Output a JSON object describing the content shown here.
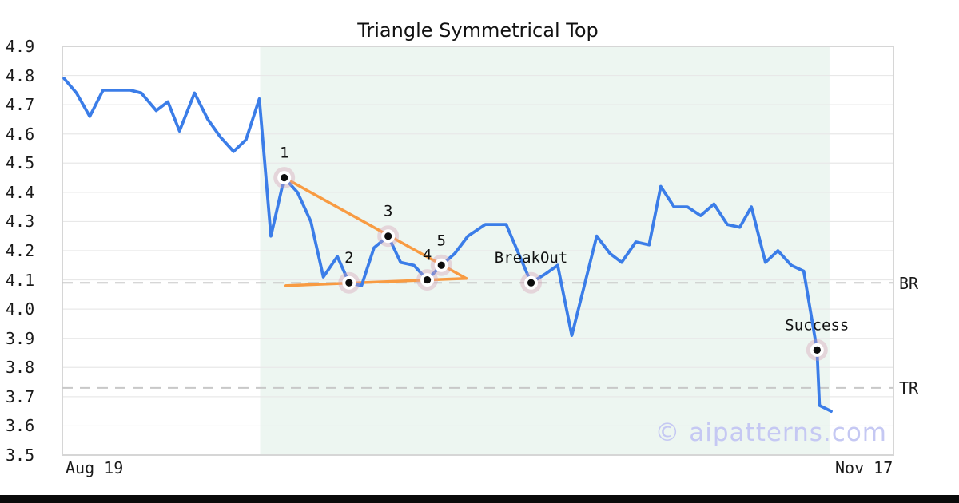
{
  "title": "Triangle Symmetrical Top",
  "watermark": "© aipatterns.com",
  "colors": {
    "price_line": "#3b7de8",
    "trendline": "#f89b42",
    "pattern_zone": "#edf6f1",
    "grid": "#e8e8e8",
    "plot_border": "#d6d6d6",
    "level_dash": "#c8c8c8",
    "marker_halo": "rgba(213,160,181,0.38)",
    "marker_ring": "#ffffff",
    "marker_dot": "#0d0d0d",
    "annotation_text": "#111111",
    "watermark_text": "#c5c8f3",
    "footer_bar": "#0a0a0a"
  },
  "chart_data": {
    "type": "line",
    "title": "Triangle Symmetrical Top",
    "xlabel": "",
    "ylabel": "",
    "ylim": [
      3.5,
      4.9
    ],
    "grid": "horizontal",
    "legend": "none",
    "y_ticks": [
      4.9,
      4.8,
      4.7,
      4.6,
      4.5,
      4.4,
      4.3,
      4.2,
      4.1,
      4.0,
      3.9,
      3.8,
      3.7,
      3.6,
      3.5
    ],
    "x_axis": {
      "start_label": "Aug 19",
      "end_label": "Nov 17"
    },
    "pattern_zone": {
      "x0": 0.238,
      "x1": 0.923
    },
    "levels": [
      {
        "label": "BR",
        "value": 4.09
      },
      {
        "label": "TR",
        "value": 3.73
      }
    ],
    "price_line": {
      "name": "price",
      "points": [
        [
          0.002,
          4.79
        ],
        [
          0.017,
          4.74
        ],
        [
          0.033,
          4.66
        ],
        [
          0.049,
          4.75
        ],
        [
          0.065,
          4.75
        ],
        [
          0.082,
          4.75
        ],
        [
          0.095,
          4.74
        ],
        [
          0.113,
          4.68
        ],
        [
          0.127,
          4.71
        ],
        [
          0.141,
          4.61
        ],
        [
          0.159,
          4.74
        ],
        [
          0.175,
          4.65
        ],
        [
          0.19,
          4.59
        ],
        [
          0.206,
          4.54
        ],
        [
          0.221,
          4.58
        ],
        [
          0.237,
          4.72
        ],
        [
          0.251,
          4.25
        ],
        [
          0.267,
          4.45
        ],
        [
          0.283,
          4.4
        ],
        [
          0.299,
          4.3
        ],
        [
          0.314,
          4.11
        ],
        [
          0.331,
          4.18
        ],
        [
          0.345,
          4.09
        ],
        [
          0.36,
          4.08
        ],
        [
          0.375,
          4.21
        ],
        [
          0.392,
          4.25
        ],
        [
          0.407,
          4.16
        ],
        [
          0.423,
          4.15
        ],
        [
          0.439,
          4.1
        ],
        [
          0.456,
          4.15
        ],
        [
          0.472,
          4.19
        ],
        [
          0.488,
          4.25
        ],
        [
          0.509,
          4.29
        ],
        [
          0.534,
          4.29
        ],
        [
          0.549,
          4.19
        ],
        [
          0.564,
          4.09
        ],
        [
          0.581,
          4.12
        ],
        [
          0.596,
          4.15
        ],
        [
          0.613,
          3.91
        ],
        [
          0.628,
          4.08
        ],
        [
          0.643,
          4.25
        ],
        [
          0.659,
          4.19
        ],
        [
          0.673,
          4.16
        ],
        [
          0.69,
          4.23
        ],
        [
          0.706,
          4.22
        ],
        [
          0.72,
          4.42
        ],
        [
          0.736,
          4.35
        ],
        [
          0.752,
          4.35
        ],
        [
          0.768,
          4.32
        ],
        [
          0.784,
          4.36
        ],
        [
          0.8,
          4.29
        ],
        [
          0.815,
          4.28
        ],
        [
          0.829,
          4.35
        ],
        [
          0.846,
          4.16
        ],
        [
          0.861,
          4.2
        ],
        [
          0.877,
          4.15
        ],
        [
          0.892,
          4.13
        ],
        [
          0.908,
          3.86
        ],
        [
          0.911,
          3.67
        ],
        [
          0.925,
          3.65
        ]
      ]
    },
    "trendlines": [
      {
        "name": "upper",
        "points": [
          [
            0.267,
            4.45
          ],
          [
            0.486,
            4.105
          ]
        ]
      },
      {
        "name": "lower",
        "points": [
          [
            0.268,
            4.08
          ],
          [
            0.486,
            4.105
          ]
        ]
      }
    ],
    "markers": [
      {
        "label": "1",
        "x": 0.267,
        "value": 4.45
      },
      {
        "label": "2",
        "x": 0.345,
        "value": 4.09
      },
      {
        "label": "3",
        "x": 0.392,
        "value": 4.25
      },
      {
        "label": "4",
        "x": 0.439,
        "value": 4.1
      },
      {
        "label": "5",
        "x": 0.456,
        "value": 4.15
      },
      {
        "label": "BreakOut",
        "x": 0.564,
        "value": 4.09
      },
      {
        "label": "Success",
        "x": 0.908,
        "value": 3.86
      }
    ]
  }
}
